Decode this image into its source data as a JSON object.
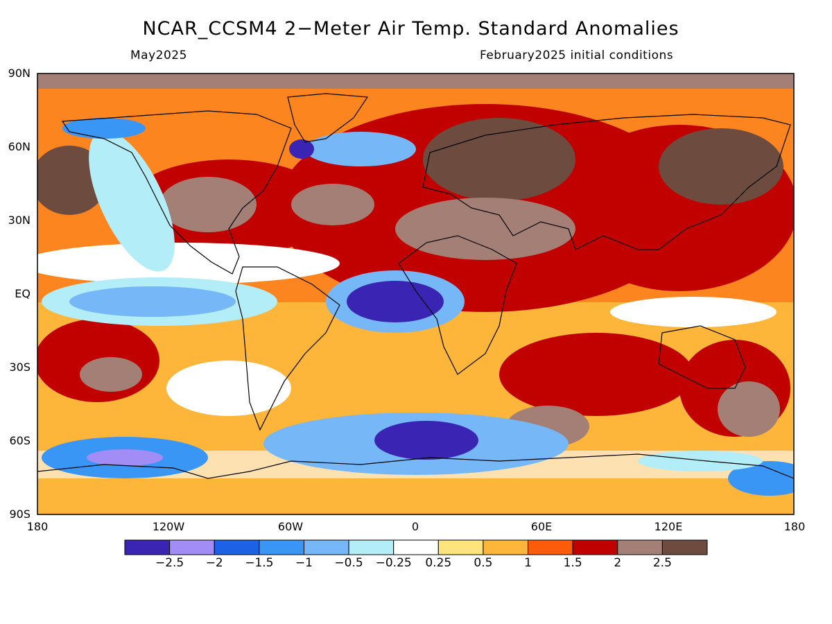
{
  "title": "NCAR_CCSM4 2−Meter Air Temp. Standard Anomalies",
  "subtitle_left": "May2025",
  "subtitle_right": "February2025 initial conditions",
  "lat_labels": [
    "90N",
    "60N",
    "30N",
    "EQ",
    "30S",
    "60S",
    "90S"
  ],
  "lon_labels": [
    "180",
    "120W",
    "60W",
    "0",
    "60E",
    "120E",
    "180"
  ],
  "colorbar": {
    "colors": [
      "#3a24b4",
      "#a28cf5",
      "#1b62e6",
      "#3a96f5",
      "#76b7f7",
      "#b3eef8",
      "#ffffff",
      "#fde47b",
      "#fdb53a",
      "#fc5c0a",
      "#c10000",
      "#a37f76",
      "#6d4b3f"
    ],
    "labels": [
      "−2.5",
      "−2",
      "−1.5",
      "−1",
      "−0.5",
      "−0.25",
      "0.25",
      "0.5",
      "1",
      "1.5",
      "2",
      "2.5"
    ]
  }
}
